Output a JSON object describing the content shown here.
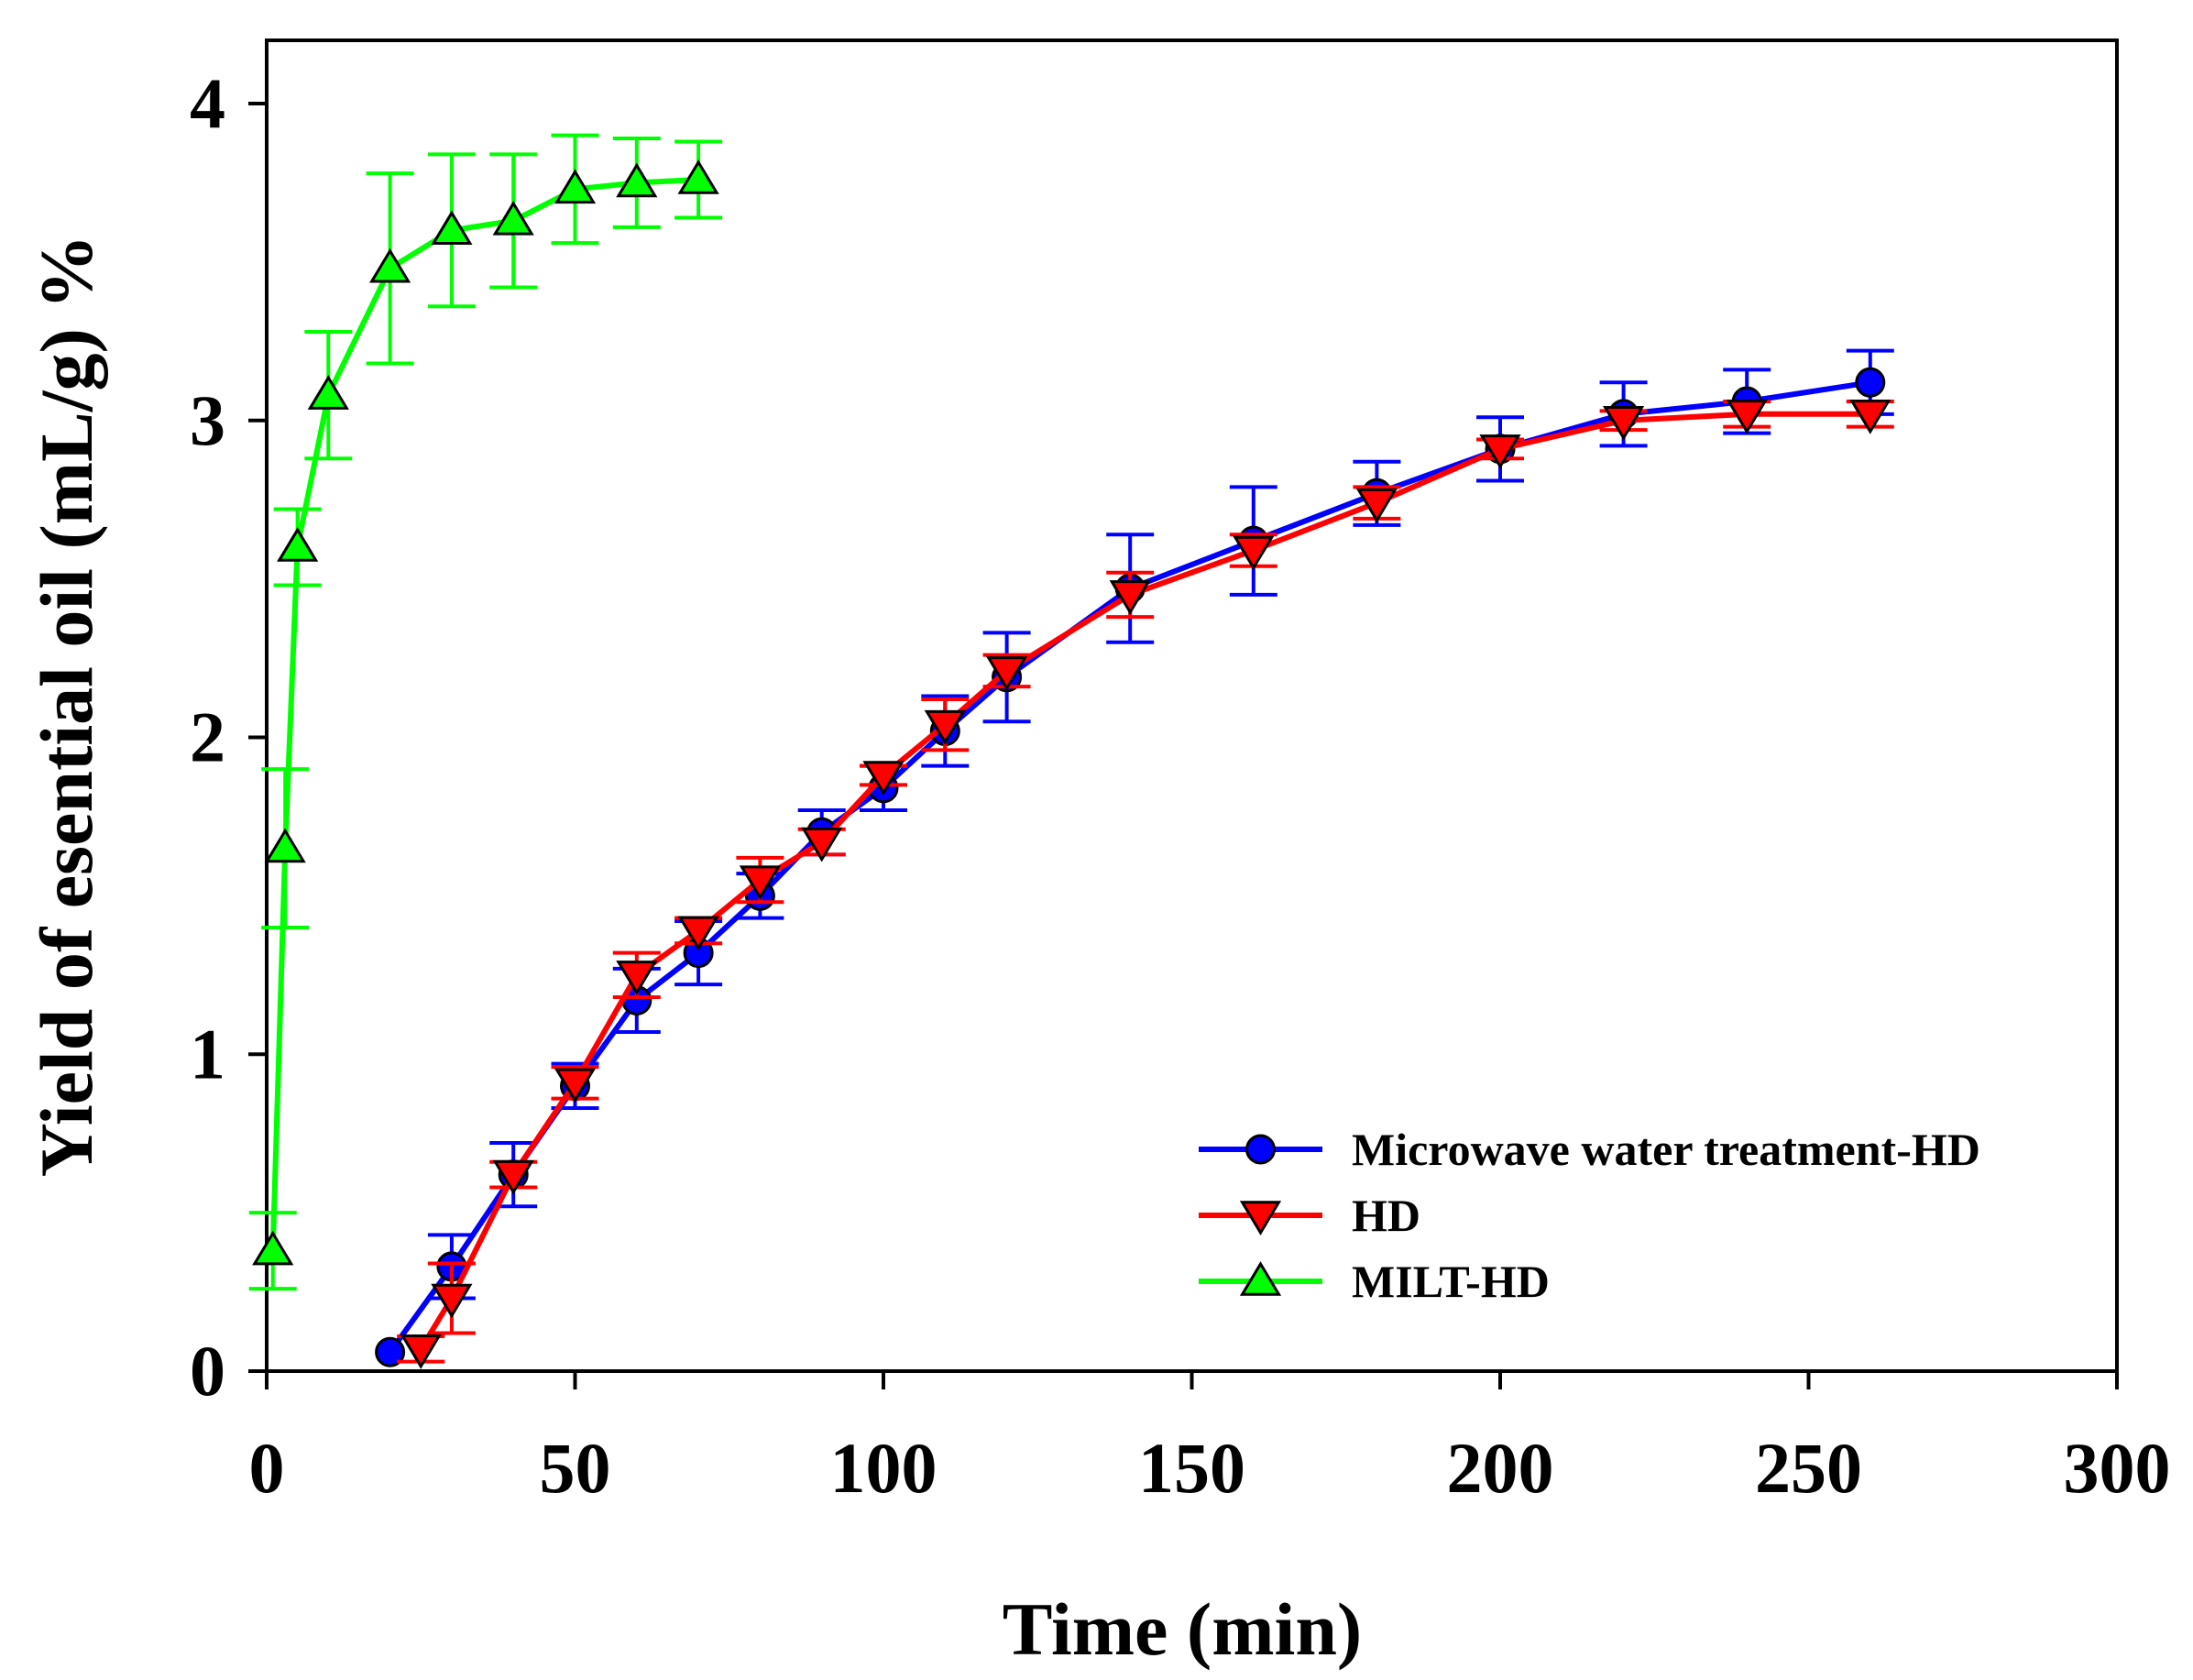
{
  "chart_data": {
    "type": "line",
    "title": "",
    "xlabel": "Time (min)",
    "ylabel": "Yield of esential oil (mL/g) %",
    "xlim": [
      0,
      300
    ],
    "ylim": [
      0,
      4.2
    ],
    "xticks": [
      0,
      50,
      100,
      150,
      200,
      250,
      300
    ],
    "yticks": [
      0,
      1,
      2,
      3,
      4
    ],
    "xtick_labels": [
      "0",
      "50",
      "100",
      "150",
      "200",
      "250",
      "300"
    ],
    "ytick_labels": [
      "0",
      "1",
      "2",
      "3",
      "4"
    ],
    "grid": false,
    "legend_position": "bottom-right",
    "series": [
      {
        "name": "Microwave water treatment-HD",
        "color": "#0000ff",
        "marker": "circle",
        "x": [
          20,
          30,
          40,
          50,
          60,
          70,
          80,
          90,
          100,
          110,
          120,
          140,
          160,
          180,
          200,
          220,
          240,
          260
        ],
        "y": [
          0.06,
          0.33,
          0.62,
          0.9,
          1.17,
          1.32,
          1.5,
          1.7,
          1.84,
          2.02,
          2.19,
          2.47,
          2.62,
          2.77,
          2.91,
          3.02,
          3.06,
          3.12
        ],
        "err": [
          0.0,
          0.1,
          0.1,
          0.07,
          0.1,
          0.1,
          0.07,
          0.07,
          0.07,
          0.11,
          0.14,
          0.17,
          0.17,
          0.1,
          0.1,
          0.1,
          0.1,
          0.1
        ]
      },
      {
        "name": "HD",
        "color": "#ff0000",
        "marker": "triangle-down",
        "x": [
          25,
          30,
          40,
          50,
          60,
          70,
          80,
          90,
          100,
          110,
          120,
          140,
          160,
          180,
          200,
          220,
          240,
          260
        ],
        "y": [
          0.07,
          0.23,
          0.62,
          0.91,
          1.25,
          1.39,
          1.55,
          1.67,
          1.88,
          2.04,
          2.21,
          2.45,
          2.59,
          2.74,
          2.91,
          3.0,
          3.02,
          3.02
        ],
        "err": [
          0.04,
          0.11,
          0.04,
          0.05,
          0.07,
          0.04,
          0.07,
          0.04,
          0.03,
          0.08,
          0.05,
          0.07,
          0.05,
          0.05,
          0.03,
          0.03,
          0.04,
          0.04
        ]
      },
      {
        "name": "MILT-HD",
        "color": "#00ff00",
        "marker": "triangle-up",
        "x": [
          1,
          3,
          5,
          10,
          20,
          30,
          40,
          50,
          60,
          70
        ],
        "y": [
          0.38,
          1.65,
          2.6,
          3.08,
          3.48,
          3.6,
          3.63,
          3.73,
          3.75,
          3.76
        ],
        "err": [
          0.12,
          0.25,
          0.12,
          0.2,
          0.3,
          0.24,
          0.21,
          0.17,
          0.14,
          0.12
        ]
      }
    ]
  }
}
